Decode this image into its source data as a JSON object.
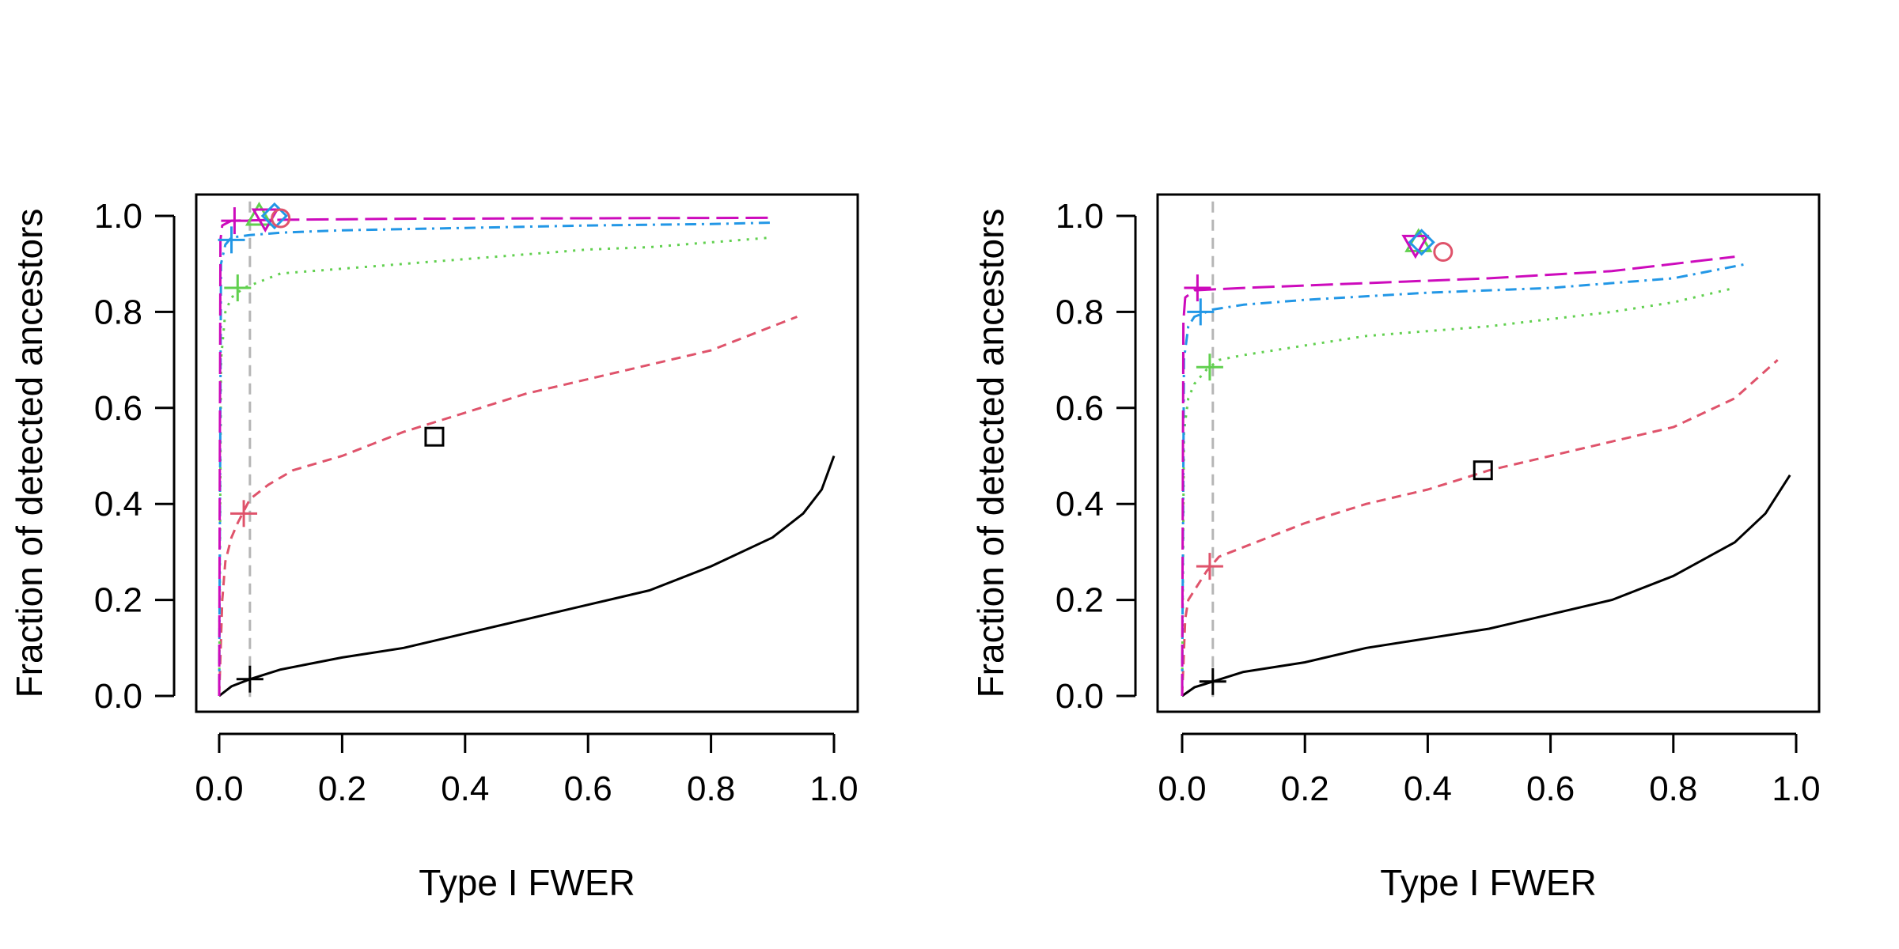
{
  "chart_data": [
    {
      "type": "line",
      "title": "",
      "xlabel": "Type I FWER",
      "ylabel": "Fraction of detected ancestors",
      "xlim": [
        0,
        1
      ],
      "ylim": [
        0,
        1
      ],
      "xticks": [
        "0.0",
        "0.2",
        "0.4",
        "0.6",
        "0.8",
        "1.0"
      ],
      "yticks": [
        "0.0",
        "0.2",
        "0.4",
        "0.6",
        "0.8",
        "1.0"
      ],
      "reference_line_x": 0.05,
      "series": [
        {
          "name": "black",
          "color": "#000000",
          "dash": "solid",
          "x": [
            0,
            0.02,
            0.05,
            0.1,
            0.2,
            0.3,
            0.4,
            0.5,
            0.6,
            0.7,
            0.8,
            0.9,
            0.95,
            0.98,
            1.0
          ],
          "y": [
            0,
            0.02,
            0.035,
            0.055,
            0.08,
            0.1,
            0.13,
            0.16,
            0.19,
            0.22,
            0.27,
            0.33,
            0.38,
            0.43,
            0.5
          ],
          "marker_plus": [
            0.05,
            0.035
          ]
        },
        {
          "name": "red",
          "color": "#DF536B",
          "dash": "dashed",
          "x": [
            0,
            0.005,
            0.01,
            0.02,
            0.03,
            0.05,
            0.08,
            0.12,
            0.2,
            0.3,
            0.4,
            0.5,
            0.6,
            0.7,
            0.8,
            0.9,
            0.94
          ],
          "y": [
            0,
            0.2,
            0.28,
            0.33,
            0.36,
            0.41,
            0.44,
            0.47,
            0.5,
            0.55,
            0.59,
            0.63,
            0.66,
            0.69,
            0.72,
            0.77,
            0.79
          ],
          "marker_plus": [
            0.04,
            0.38
          ]
        },
        {
          "name": "green",
          "color": "#61D04F",
          "dash": "dotted",
          "x": [
            0,
            0.003,
            0.01,
            0.02,
            0.04,
            0.06,
            0.1,
            0.2,
            0.3,
            0.4,
            0.5,
            0.6,
            0.7,
            0.8,
            0.9
          ],
          "y": [
            0,
            0.7,
            0.8,
            0.83,
            0.85,
            0.86,
            0.88,
            0.89,
            0.9,
            0.91,
            0.92,
            0.93,
            0.935,
            0.945,
            0.955
          ],
          "marker_plus": [
            0.03,
            0.85
          ]
        },
        {
          "name": "blue",
          "color": "#2297E6",
          "dash": "dotdash",
          "x": [
            0,
            0.003,
            0.01,
            0.02,
            0.05,
            0.1,
            0.2,
            0.4,
            0.6,
            0.8,
            0.9
          ],
          "y": [
            0,
            0.9,
            0.94,
            0.955,
            0.96,
            0.965,
            0.97,
            0.975,
            0.98,
            0.983,
            0.986
          ],
          "marker_plus": [
            0.02,
            0.95
          ]
        },
        {
          "name": "magenta",
          "color": "#CD0BBC",
          "dash": "longdash",
          "x": [
            0,
            0.002,
            0.005,
            0.02,
            0.1,
            0.3,
            0.6,
            0.9
          ],
          "y": [
            0,
            0.95,
            0.98,
            0.99,
            0.992,
            0.994,
            0.995,
            0.996
          ],
          "marker_plus": [
            0.025,
            0.99
          ]
        }
      ],
      "points": [
        {
          "shape": "square",
          "color": "#000000",
          "x": 0.35,
          "y": 0.54
        },
        {
          "shape": "triangle-up",
          "color": "#61D04F",
          "x": 0.065,
          "y": 1.0
        },
        {
          "shape": "triangle-down",
          "color": "#CD0BBC",
          "x": 0.075,
          "y": 0.995
        },
        {
          "shape": "diamond",
          "color": "#2297E6",
          "x": 0.09,
          "y": 1.0
        },
        {
          "shape": "circle",
          "color": "#DF536B",
          "x": 0.1,
          "y": 0.995
        }
      ]
    },
    {
      "type": "line",
      "title": "",
      "xlabel": "Type I FWER",
      "ylabel": "Fraction of detected ancestors",
      "xlim": [
        0,
        1
      ],
      "ylim": [
        0,
        1
      ],
      "xticks": [
        "0.0",
        "0.2",
        "0.4",
        "0.6",
        "0.8",
        "1.0"
      ],
      "yticks": [
        "0.0",
        "0.2",
        "0.4",
        "0.6",
        "0.8",
        "1.0"
      ],
      "reference_line_x": 0.05,
      "series": [
        {
          "name": "black",
          "color": "#000000",
          "dash": "solid",
          "x": [
            0,
            0.02,
            0.05,
            0.1,
            0.2,
            0.3,
            0.4,
            0.5,
            0.6,
            0.7,
            0.8,
            0.9,
            0.95,
            0.99
          ],
          "y": [
            0,
            0.018,
            0.03,
            0.05,
            0.07,
            0.1,
            0.12,
            0.14,
            0.17,
            0.2,
            0.25,
            0.32,
            0.38,
            0.46
          ],
          "marker_plus": [
            0.05,
            0.03
          ]
        },
        {
          "name": "red",
          "color": "#DF536B",
          "dash": "dashed",
          "x": [
            0,
            0.005,
            0.01,
            0.02,
            0.04,
            0.06,
            0.1,
            0.2,
            0.3,
            0.4,
            0.5,
            0.6,
            0.7,
            0.8,
            0.9,
            0.97
          ],
          "y": [
            0,
            0.16,
            0.2,
            0.22,
            0.26,
            0.29,
            0.31,
            0.36,
            0.4,
            0.43,
            0.47,
            0.5,
            0.53,
            0.56,
            0.62,
            0.7
          ],
          "marker_plus": [
            0.045,
            0.27
          ]
        },
        {
          "name": "green",
          "color": "#61D04F",
          "dash": "dotted",
          "x": [
            0,
            0.003,
            0.01,
            0.02,
            0.04,
            0.06,
            0.1,
            0.2,
            0.3,
            0.4,
            0.5,
            0.6,
            0.7,
            0.8,
            0.9
          ],
          "y": [
            0,
            0.55,
            0.62,
            0.65,
            0.68,
            0.7,
            0.71,
            0.73,
            0.75,
            0.76,
            0.77,
            0.785,
            0.8,
            0.82,
            0.85
          ],
          "marker_plus": [
            0.045,
            0.685
          ]
        },
        {
          "name": "blue",
          "color": "#2297E6",
          "dash": "dotdash",
          "x": [
            0,
            0.003,
            0.01,
            0.02,
            0.05,
            0.1,
            0.2,
            0.4,
            0.6,
            0.8,
            0.92
          ],
          "y": [
            0,
            0.7,
            0.77,
            0.79,
            0.805,
            0.815,
            0.825,
            0.84,
            0.85,
            0.87,
            0.9
          ],
          "marker_plus": [
            0.03,
            0.8
          ]
        },
        {
          "name": "magenta",
          "color": "#CD0BBC",
          "dash": "longdash",
          "x": [
            0,
            0.002,
            0.005,
            0.02,
            0.1,
            0.3,
            0.5,
            0.7,
            0.9
          ],
          "y": [
            0,
            0.78,
            0.83,
            0.845,
            0.85,
            0.86,
            0.87,
            0.885,
            0.915
          ],
          "marker_plus": [
            0.025,
            0.85
          ]
        }
      ],
      "points": [
        {
          "shape": "square",
          "color": "#000000",
          "x": 0.49,
          "y": 0.47
        },
        {
          "shape": "triangle-up",
          "color": "#61D04F",
          "x": 0.385,
          "y": 0.945
        },
        {
          "shape": "triangle-down",
          "color": "#CD0BBC",
          "x": 0.38,
          "y": 0.94
        },
        {
          "shape": "diamond",
          "color": "#2297E6",
          "x": 0.39,
          "y": 0.945
        },
        {
          "shape": "circle",
          "color": "#DF536B",
          "x": 0.425,
          "y": 0.925
        }
      ]
    }
  ]
}
